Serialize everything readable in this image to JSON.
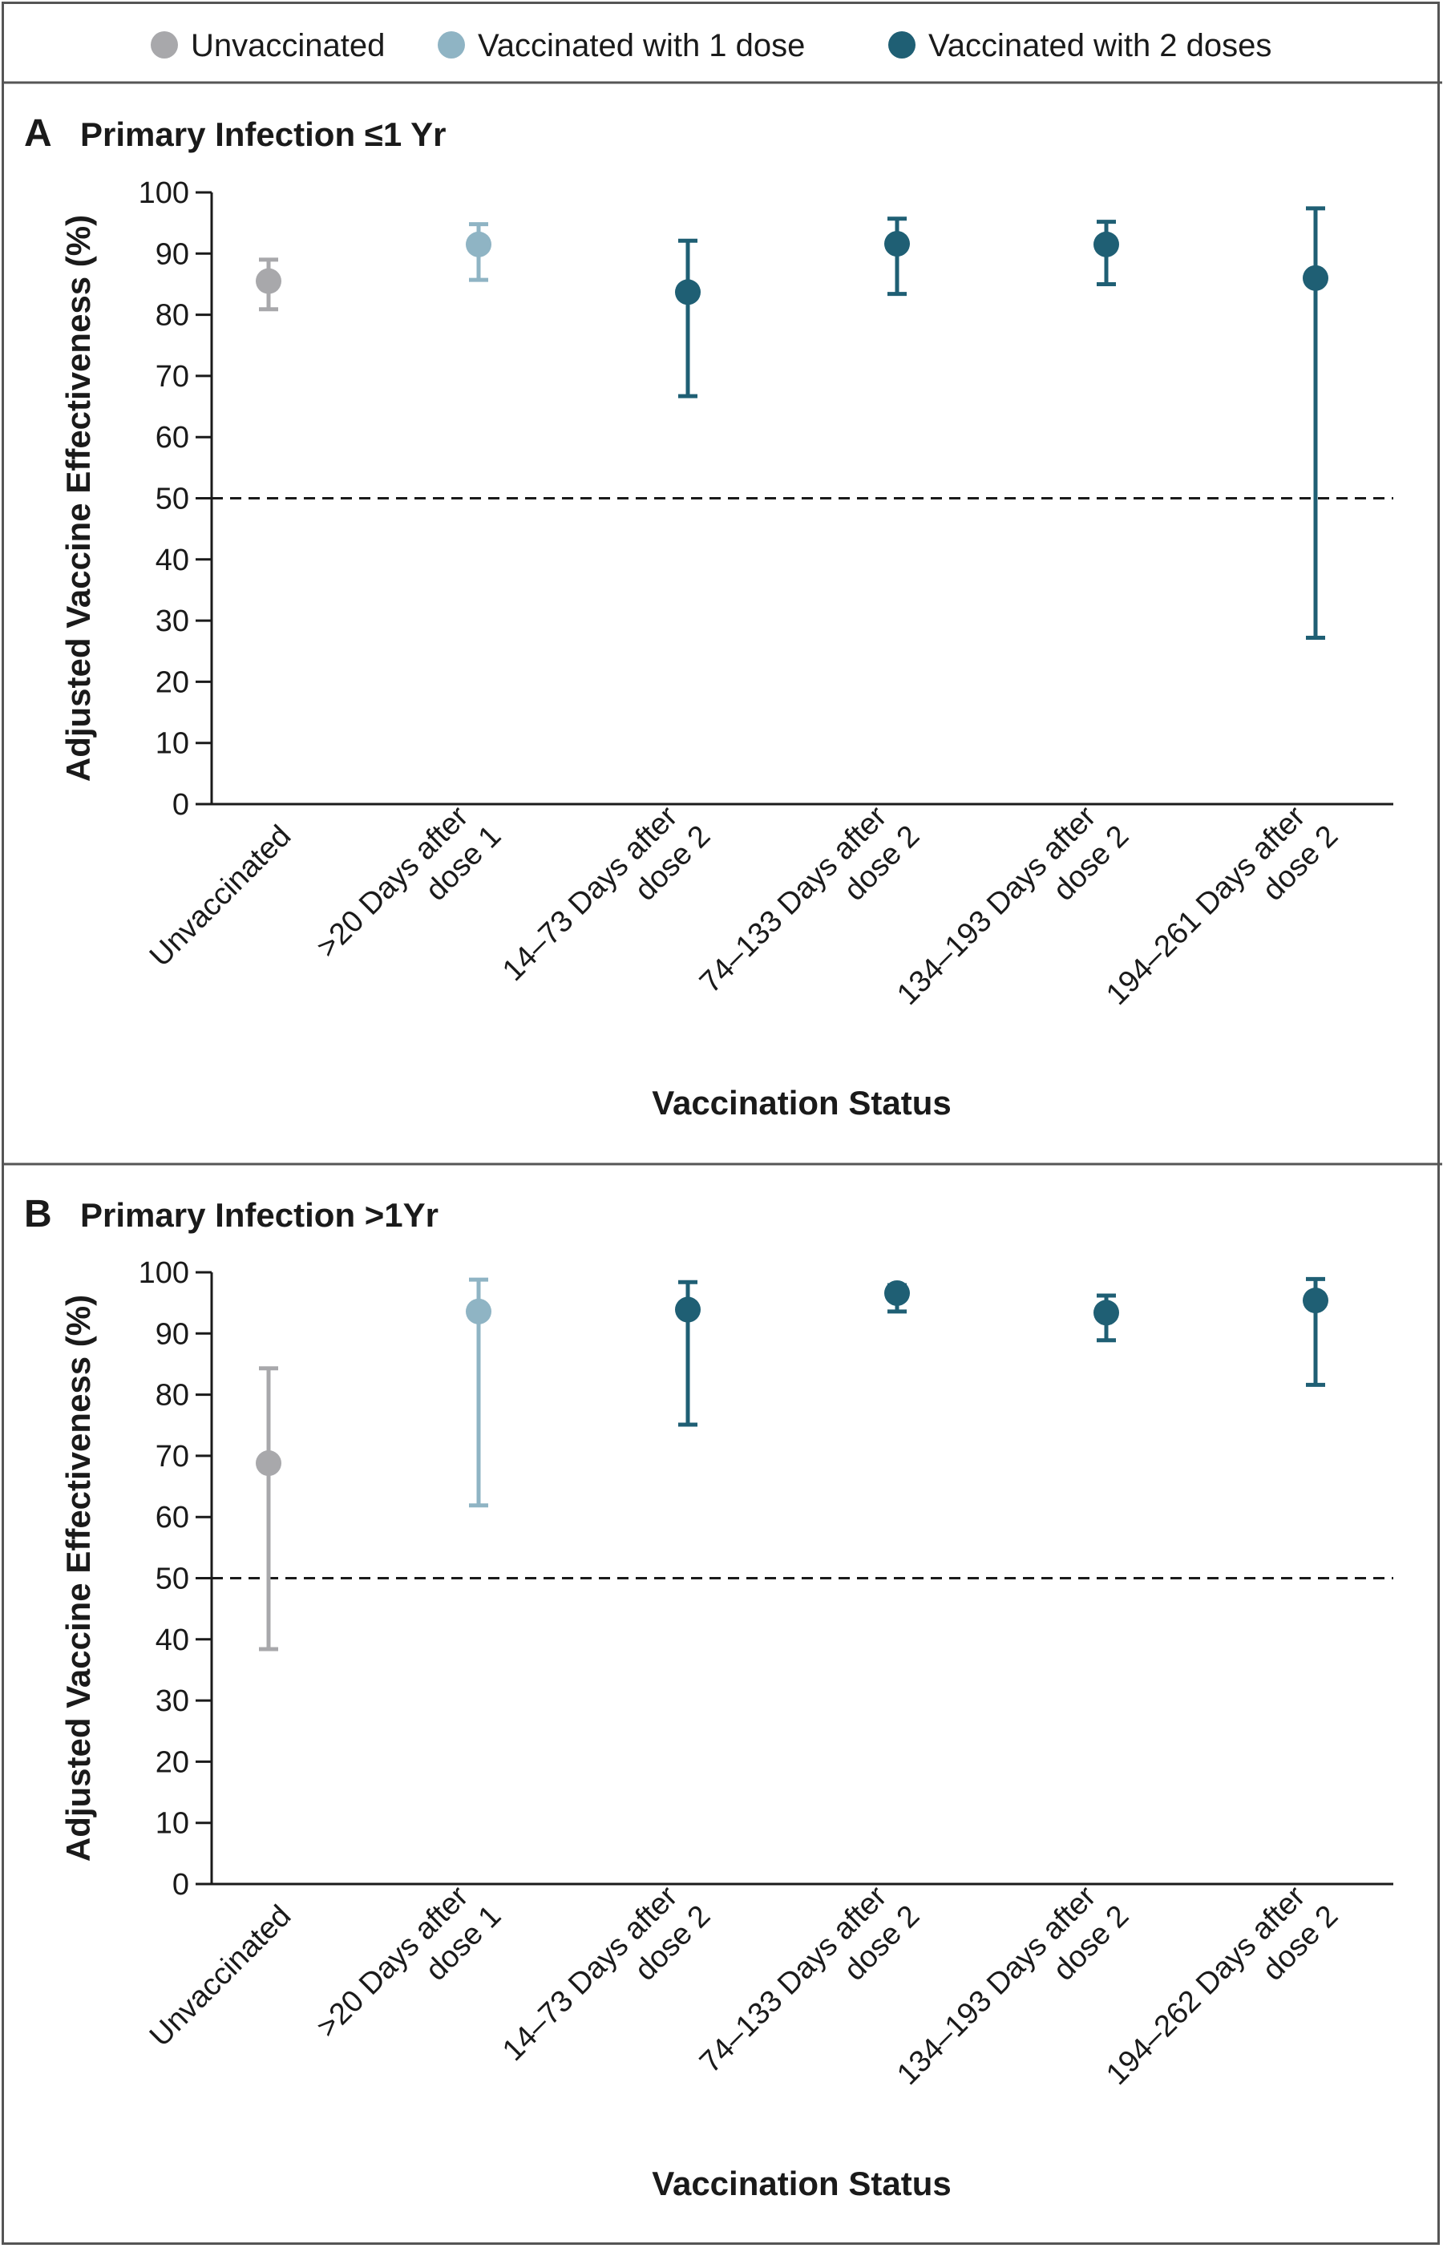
{
  "legend": {
    "items": [
      {
        "label": "Unvaccinated",
        "color": "#a8a8ab"
      },
      {
        "label": "Vaccinated with 1 dose",
        "color": "#8fb4c4"
      },
      {
        "label": "Vaccinated with 2 doses",
        "color": "#1f5f74"
      }
    ]
  },
  "chart_data": [
    {
      "type": "scatter",
      "panel_letter": "A",
      "title": "Primary Infection ≤1 Yr",
      "xlabel": "Vaccination Status",
      "ylabel": "Adjusted Vaccine Effectiveness (%)",
      "ylim": [
        0,
        100
      ],
      "yticks": [
        0,
        10,
        20,
        30,
        40,
        50,
        60,
        70,
        80,
        90,
        100
      ],
      "reference_line": 50,
      "categories": [
        {
          "line1": "Unvaccinated",
          "line2": "",
          "group": 0
        },
        {
          "line1": ">20 Days after",
          "line2": "dose 1",
          "group": 1
        },
        {
          "line1": "14–73 Days after",
          "line2": "dose 2",
          "group": 2
        },
        {
          "line1": "74–133 Days after",
          "line2": "dose 2",
          "group": 2
        },
        {
          "line1": "134–193 Days after",
          "line2": "dose 2",
          "group": 2
        },
        {
          "line1": "194–261 Days after",
          "line2": "dose 2",
          "group": 2
        }
      ],
      "values": [
        85.5,
        91.5,
        83.7,
        91.6,
        91.5,
        86.0
      ],
      "ci_low": [
        80.9,
        85.7,
        66.7,
        83.4,
        85.0,
        27.2
      ],
      "ci_high": [
        89.0,
        94.8,
        92.1,
        95.7,
        95.2,
        97.4
      ]
    },
    {
      "type": "scatter",
      "panel_letter": "B",
      "title": "Primary Infection >1Yr",
      "xlabel": "Vaccination Status",
      "ylabel": "Adjusted Vaccine Effectiveness (%)",
      "ylim": [
        0,
        100
      ],
      "yticks": [
        0,
        10,
        20,
        30,
        40,
        50,
        60,
        70,
        80,
        90,
        100
      ],
      "reference_line": 50,
      "categories": [
        {
          "line1": "Unvaccinated",
          "line2": "",
          "group": 0
        },
        {
          "line1": ">20 Days after",
          "line2": "dose 1",
          "group": 1
        },
        {
          "line1": "14–73 Days after",
          "line2": "dose 2",
          "group": 2
        },
        {
          "line1": "74–133 Days after",
          "line2": "dose 2",
          "group": 2
        },
        {
          "line1": "134–193 Days after",
          "line2": "dose 2",
          "group": 2
        },
        {
          "line1": "194–262 Days after",
          "line2": "dose 2",
          "group": 2
        }
      ],
      "values": [
        68.8,
        93.6,
        93.9,
        96.6,
        93.4,
        95.4
      ],
      "ci_low": [
        38.4,
        61.9,
        75.1,
        93.6,
        88.9,
        81.6
      ],
      "ci_high": [
        84.3,
        98.8,
        98.4,
        97.9,
        96.2,
        98.9
      ]
    }
  ]
}
